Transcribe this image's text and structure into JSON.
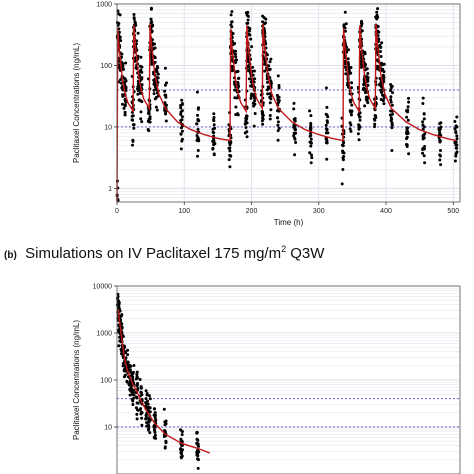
{
  "caption_b": {
    "tag": "(b)",
    "text": "Simulations on IV Paclitaxel 175 mg/m",
    "sup": "2",
    "suffix": " Q3W"
  },
  "chart_data": [
    {
      "id": "a",
      "type": "scatter",
      "title": "",
      "xlabel": "Time (h)",
      "ylabel": "Paclitaxel Concentrations (ng/mL)",
      "xlim": [
        0,
        510
      ],
      "ylim": [
        0.6,
        1000
      ],
      "yscale": "log",
      "xticks": [
        0,
        100,
        200,
        300,
        400,
        500
      ],
      "yticks": [
        1,
        10,
        100,
        1000
      ],
      "grid": true,
      "colors": {
        "points": "#000000",
        "median": "#c01818",
        "reference": "#5050c8",
        "grid": "#dddde8"
      },
      "reference_lines": [
        10,
        40
      ],
      "dose_times": [
        0,
        24,
        48,
        168,
        192,
        216,
        336,
        360,
        384
      ],
      "sample_times": [
        0,
        2,
        4,
        8,
        12,
        24,
        26,
        28,
        32,
        36,
        48,
        50,
        52,
        56,
        60,
        72,
        96,
        120,
        144,
        168,
        170,
        172,
        176,
        180,
        192,
        194,
        196,
        200,
        204,
        216,
        218,
        220,
        224,
        228,
        240,
        264,
        288,
        312,
        336,
        338,
        340,
        344,
        348,
        360,
        362,
        364,
        368,
        372,
        384,
        386,
        388,
        392,
        396,
        408,
        432,
        456,
        480,
        504
      ],
      "series": [
        {
          "name": "",
          "role": "median",
          "x": [
            0,
            1,
            3,
            8,
            12,
            16,
            24,
            25,
            27,
            32,
            36,
            40,
            48,
            49,
            51,
            56,
            62,
            72,
            90,
            110,
            130,
            150,
            168,
            169,
            171,
            176,
            180,
            184,
            192,
            193,
            195,
            200,
            204,
            208,
            216,
            217,
            219,
            224,
            230,
            240,
            260,
            280,
            300,
            320,
            336,
            337,
            339,
            344,
            348,
            352,
            360,
            361,
            363,
            368,
            372,
            376,
            384,
            385,
            387,
            392,
            398,
            408,
            430,
            450,
            470,
            490,
            504
          ],
          "y": [
            0.6,
            400,
            200,
            60,
            35,
            25,
            18,
            450,
            220,
            70,
            40,
            28,
            20,
            480,
            230,
            75,
            35,
            20,
            12,
            9,
            7.5,
            6.5,
            6,
            400,
            200,
            60,
            35,
            25,
            18,
            450,
            220,
            70,
            40,
            28,
            20,
            480,
            230,
            75,
            35,
            20,
            12,
            9,
            7.5,
            6.5,
            6,
            400,
            200,
            60,
            35,
            25,
            18,
            450,
            220,
            70,
            40,
            28,
            20,
            480,
            230,
            75,
            35,
            20,
            12,
            9,
            7.5,
            6.5,
            6
          ]
        }
      ]
    },
    {
      "id": "b",
      "type": "scatter",
      "title": "",
      "xlabel": "",
      "ylabel": "Paclitaxel Concentrations (ng/mL)",
      "xlim": [
        0,
        510
      ],
      "ylim": [
        1,
        10000
      ],
      "yscale": "log",
      "yticks": [
        10,
        100,
        1000,
        10000
      ],
      "grid": true,
      "colors": {
        "points": "#000000",
        "median": "#c01818",
        "reference": "#5050c8",
        "grid": "#dddde8"
      },
      "reference_lines": [
        10,
        40
      ],
      "sample_times": [
        2,
        4,
        6,
        8,
        12,
        16,
        20,
        24,
        30,
        36,
        44,
        48,
        56,
        72,
        96,
        120
      ],
      "series": [
        {
          "name": "",
          "role": "median",
          "x": [
            2,
            3,
            5,
            8,
            12,
            16,
            20,
            24,
            30,
            36,
            44,
            48,
            56,
            72,
            96,
            120,
            138
          ],
          "y": [
            3200,
            2200,
            1300,
            600,
            250,
            150,
            110,
            80,
            55,
            35,
            22,
            18,
            12,
            7,
            4.5,
            3.5,
            2.8
          ]
        }
      ]
    }
  ]
}
